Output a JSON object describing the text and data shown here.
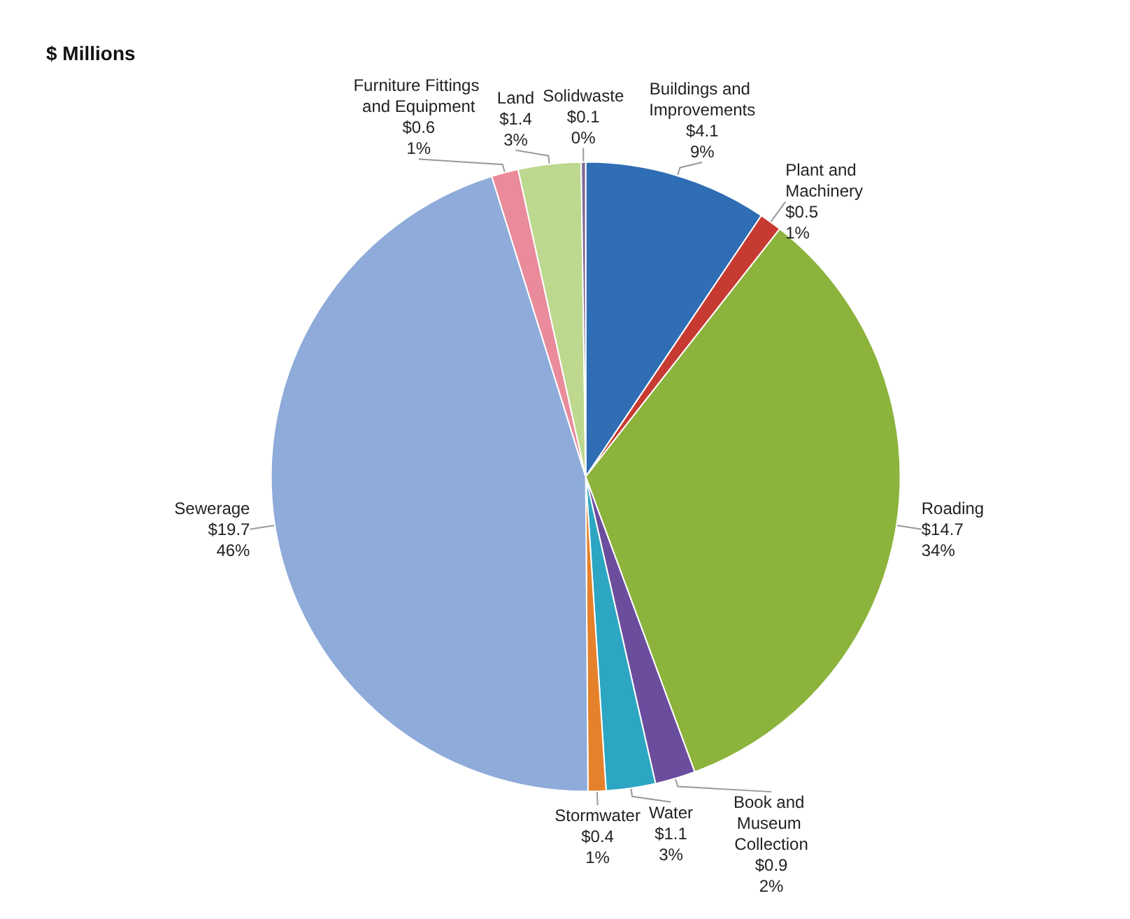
{
  "chart_data": {
    "type": "pie",
    "title": "$ Millions",
    "categories": [
      "Buildings and Improvements",
      "Plant and Machinery",
      "Roading",
      "Book and Museum Collection",
      "Water",
      "Stormwater",
      "Sewerage",
      "Furniture Fittings and Equipment",
      "Land",
      "Solidwaste"
    ],
    "values": [
      4.1,
      0.5,
      14.7,
      0.9,
      1.1,
      0.4,
      19.7,
      0.6,
      1.4,
      0.1
    ],
    "value_labels": [
      "$4.1\n9%",
      "$0.5\n1%",
      "$14.7\n34%",
      "$0.9\n2%",
      "$1.1\n3%",
      "$0.4\n1%",
      "$19.7\n46%",
      "$0.6\n1%",
      "$1.4\n3%",
      "$0.1\n0%"
    ],
    "colors": [
      "#2f6db4",
      "#c73a32",
      "#8cb33c",
      "#6b4d9e",
      "#2ca6c2",
      "#e5812a",
      "#8eabd9",
      "#e98b9b",
      "#bdd88f",
      "#7d6a96"
    ],
    "legend": false
  }
}
